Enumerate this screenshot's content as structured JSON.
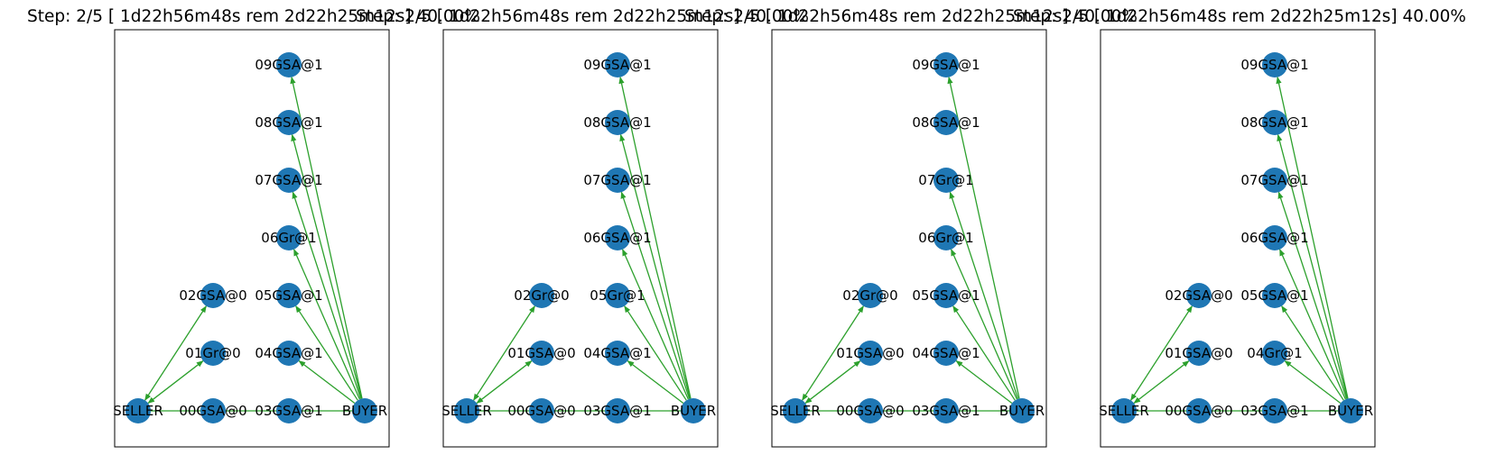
{
  "colors": {
    "node": "#1f77b4",
    "edge": "#2ca02c",
    "frame": "#000000",
    "text": "#000000"
  },
  "panels": [
    {
      "title": "Step: 2/5 [ 1d22h56m48s rem  2d22h25m12s] 40.00%",
      "nodes": {
        "SELLER": "SELLER",
        "00": "00GSA@0",
        "01": "01Gr@0",
        "02": "02GSA@0",
        "03": "03GSA@1",
        "04": "04GSA@1",
        "05": "05GSA@1",
        "06": "06Gr@1",
        "07": "07GSA@1",
        "08": "08GSA@1",
        "09": "09GSA@1",
        "BUYER": "BUYER"
      }
    },
    {
      "title": "Step: 2/5 [ 1d22h56m48s rem  2d22h25m12s] 40.00%",
      "nodes": {
        "SELLER": "SELLER",
        "00": "00GSA@0",
        "01": "01GSA@0",
        "02": "02Gr@0",
        "03": "03GSA@1",
        "04": "04GSA@1",
        "05": "05Gr@1",
        "06": "06GSA@1",
        "07": "07GSA@1",
        "08": "08GSA@1",
        "09": "09GSA@1",
        "BUYER": "BUYER"
      }
    },
    {
      "title": "Step: 2/5 [ 1d22h56m48s rem  2d22h25m12s] 40.00%",
      "nodes": {
        "SELLER": "SELLER",
        "00": "00GSA@0",
        "01": "01GSA@0",
        "02": "02Gr@0",
        "03": "03GSA@1",
        "04": "04GSA@1",
        "05": "05GSA@1",
        "06": "06Gr@1",
        "07": "07Gr@1",
        "08": "08GSA@1",
        "09": "09GSA@1",
        "BUYER": "BUYER"
      }
    },
    {
      "title": "Step: 2/5 [ 1d22h56m48s rem  2d22h25m12s] 40.00%",
      "nodes": {
        "SELLER": "SELLER",
        "00": "00GSA@0",
        "01": "01GSA@0",
        "02": "02GSA@0",
        "03": "03GSA@1",
        "04": "04Gr@1",
        "05": "05GSA@1",
        "06": "06GSA@1",
        "07": "07GSA@1",
        "08": "08GSA@1",
        "09": "09GSA@1",
        "BUYER": "BUYER"
      }
    }
  ]
}
